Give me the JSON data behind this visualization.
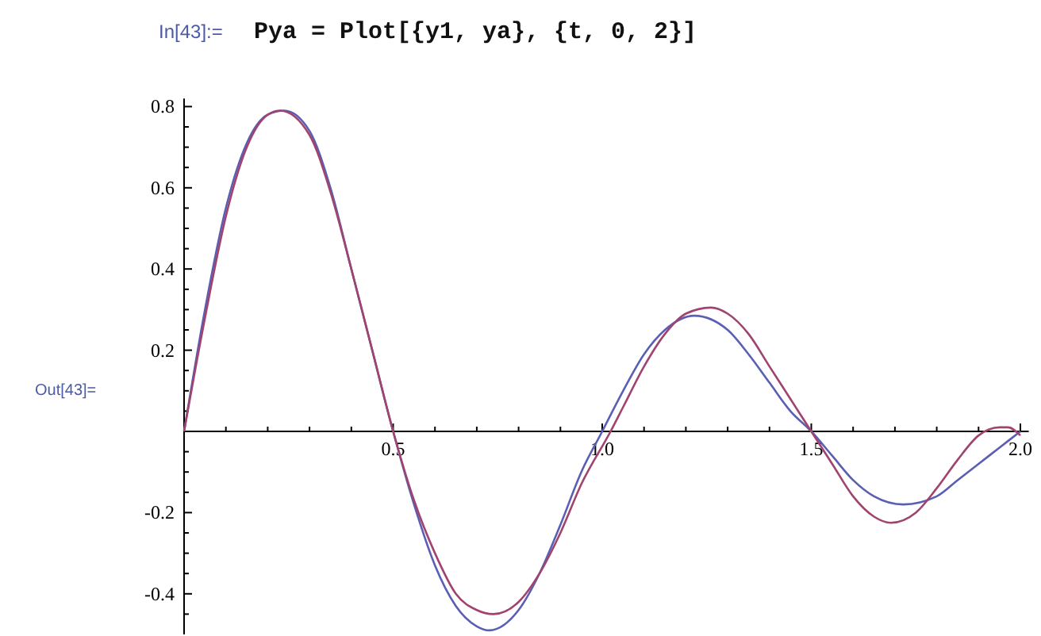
{
  "chart_data": {
    "type": "line",
    "annotations": [
      "In[43]:=",
      "Pya = Plot[{y1, ya}, {t, 0, 2}]",
      "Out[43]="
    ],
    "xlim": [
      0,
      2.02
    ],
    "ylim": [
      -0.5,
      0.82
    ],
    "xticks": [
      {
        "value": 0.1,
        "label": null
      },
      {
        "value": 0.2,
        "label": null
      },
      {
        "value": 0.3,
        "label": null
      },
      {
        "value": 0.4,
        "label": null
      },
      {
        "value": 0.5,
        "label": "0.5"
      },
      {
        "value": 0.6,
        "label": null
      },
      {
        "value": 0.7,
        "label": null
      },
      {
        "value": 0.8,
        "label": null
      },
      {
        "value": 0.9,
        "label": null
      },
      {
        "value": 1,
        "label": "1.0"
      },
      {
        "value": 1.1,
        "label": null
      },
      {
        "value": 1.2,
        "label": null
      },
      {
        "value": 1.3,
        "label": null
      },
      {
        "value": 1.4,
        "label": null
      },
      {
        "value": 1.5,
        "label": "1.5"
      },
      {
        "value": 1.6,
        "label": null
      },
      {
        "value": 1.7,
        "label": null
      },
      {
        "value": 1.8,
        "label": null
      },
      {
        "value": 1.9,
        "label": null
      },
      {
        "value": 2,
        "label": "2.0"
      }
    ],
    "yticks": [
      {
        "value": -0.45,
        "label": null
      },
      {
        "value": -0.4,
        "label": "-0.4"
      },
      {
        "value": -0.35,
        "label": null
      },
      {
        "value": -0.3,
        "label": null
      },
      {
        "value": -0.25,
        "label": null
      },
      {
        "value": -0.2,
        "label": "-0.2"
      },
      {
        "value": -0.15,
        "label": null
      },
      {
        "value": -0.1,
        "label": null
      },
      {
        "value": -0.05,
        "label": null
      },
      {
        "value": 0.05,
        "label": null
      },
      {
        "value": 0.1,
        "label": null
      },
      {
        "value": 0.15,
        "label": null
      },
      {
        "value": 0.2,
        "label": "0.2"
      },
      {
        "value": 0.25,
        "label": null
      },
      {
        "value": 0.3,
        "label": null
      },
      {
        "value": 0.35,
        "label": null
      },
      {
        "value": 0.4,
        "label": "0.4"
      },
      {
        "value": 0.45,
        "label": null
      },
      {
        "value": 0.5,
        "label": null
      },
      {
        "value": 0.55,
        "label": null
      },
      {
        "value": 0.6,
        "label": "0.6"
      },
      {
        "value": 0.65,
        "label": null
      },
      {
        "value": 0.7,
        "label": null
      },
      {
        "value": 0.75,
        "label": null
      },
      {
        "value": 0.8,
        "label": "0.8"
      }
    ],
    "grid": false,
    "series": [
      {
        "color": "#5a5fb4",
        "x": [
          0,
          0.05,
          0.1,
          0.15,
          0.2,
          0.24,
          0.3,
          0.35,
          0.4,
          0.45,
          0.5,
          0.55,
          0.6,
          0.65,
          0.7,
          0.73,
          0.8,
          0.85,
          0.9,
          0.95,
          1.0,
          1.05,
          1.1,
          1.15,
          1.22,
          1.3,
          1.35,
          1.4,
          1.45,
          1.5,
          1.55,
          1.6,
          1.65,
          1.72,
          1.8,
          1.85,
          1.9,
          1.95,
          2.0
        ],
        "values": [
          0,
          0.3,
          0.55,
          0.71,
          0.78,
          0.79,
          0.74,
          0.6,
          0.4,
          0.2,
          0,
          -0.18,
          -0.33,
          -0.43,
          -0.48,
          -0.49,
          -0.44,
          -0.35,
          -0.23,
          -0.1,
          0,
          0.1,
          0.19,
          0.25,
          0.285,
          0.25,
          0.19,
          0.12,
          0.05,
          0,
          -0.06,
          -0.12,
          -0.16,
          -0.18,
          -0.16,
          -0.12,
          -0.08,
          -0.04,
          0
        ]
      },
      {
        "color": "#a0446f",
        "x": [
          0,
          0.05,
          0.1,
          0.15,
          0.2,
          0.23,
          0.3,
          0.35,
          0.4,
          0.45,
          0.5,
          0.55,
          0.6,
          0.65,
          0.7,
          0.74,
          0.8,
          0.85,
          0.9,
          0.95,
          1.02,
          1.05,
          1.1,
          1.15,
          1.2,
          1.26,
          1.3,
          1.35,
          1.4,
          1.45,
          1.5,
          1.55,
          1.6,
          1.65,
          1.69,
          1.75,
          1.8,
          1.85,
          1.9,
          1.95,
          1.97,
          2.0
        ],
        "values": [
          0,
          0.28,
          0.53,
          0.7,
          0.78,
          0.79,
          0.73,
          0.59,
          0.4,
          0.2,
          0,
          -0.17,
          -0.3,
          -0.4,
          -0.44,
          -0.45,
          -0.42,
          -0.35,
          -0.25,
          -0.13,
          0,
          0.06,
          0.16,
          0.24,
          0.29,
          0.305,
          0.29,
          0.24,
          0.16,
          0.08,
          0,
          -0.08,
          -0.16,
          -0.21,
          -0.225,
          -0.2,
          -0.14,
          -0.07,
          -0.01,
          0.01,
          0.01,
          -0.01
        ]
      }
    ]
  }
}
